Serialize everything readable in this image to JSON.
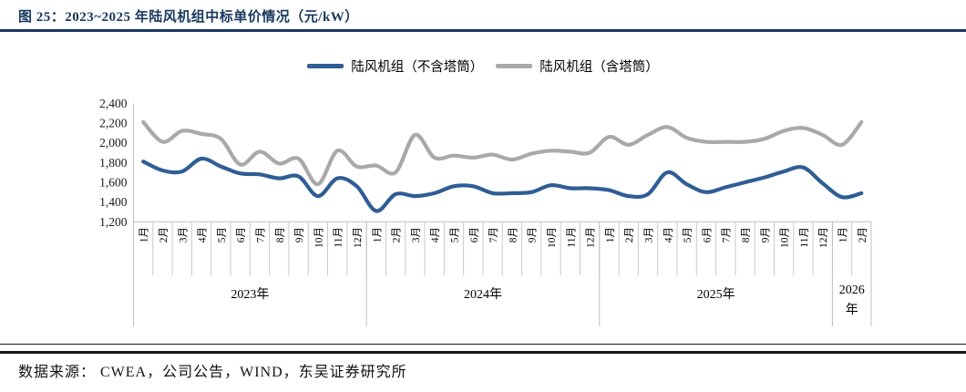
{
  "header": {
    "title": "图 25：2023~2025 年陆风机组中标单价情况（元/kW）"
  },
  "footer": {
    "source": "数据来源： CWEA，公司公告，WIND，东吴证券研究所"
  },
  "colors": {
    "accent_navy": "#17375E",
    "series_blue": "#2F5D95",
    "series_gray": "#A9A9A9",
    "axis_line": "#BFBFBF",
    "tick_text": "#1a1a1a"
  },
  "chart_data": {
    "type": "line",
    "title": "2023~2025 年陆风机组中标单价情况（元/kW）",
    "unit": "元/kW",
    "smooth": true,
    "grid": false,
    "legend_position": "top",
    "ylim": [
      1200,
      2400
    ],
    "ytick_labels": [
      "2,400",
      "2,200",
      "2,000",
      "1,800",
      "1,600",
      "1,400",
      "1,200"
    ],
    "ytick_values": [
      2400,
      2200,
      2000,
      1800,
      1600,
      1400,
      1200
    ],
    "categories": [
      "1月",
      "2月",
      "3月",
      "4月",
      "5月",
      "6月",
      "7月",
      "8月",
      "9月",
      "10月",
      "11月",
      "12月",
      "1月",
      "2月",
      "3月",
      "4月",
      "5月",
      "6月",
      "7月",
      "8月",
      "9月",
      "10月",
      "11月",
      "12月",
      "1月",
      "2月",
      "3月",
      "4月",
      "5月",
      "6月",
      "7月",
      "8月",
      "9月",
      "10月",
      "11月",
      "12月",
      "1月",
      "2月"
    ],
    "year_groups": [
      {
        "label": "2023年",
        "span": 12
      },
      {
        "label": "2024年",
        "span": 12
      },
      {
        "label": "2025年",
        "span": 12
      },
      {
        "label": "2026年",
        "span": 2
      }
    ],
    "series": [
      {
        "name": "陆风机组（不含塔筒）",
        "color": "#2F5D95",
        "values": [
          1810,
          1720,
          1710,
          1840,
          1760,
          1690,
          1680,
          1640,
          1660,
          1460,
          1640,
          1560,
          1310,
          1480,
          1460,
          1490,
          1560,
          1560,
          1490,
          1490,
          1500,
          1570,
          1540,
          1540,
          1520,
          1460,
          1480,
          1700,
          1580,
          1500,
          1550,
          1600,
          1650,
          1710,
          1750,
          1590,
          1450,
          1490
        ]
      },
      {
        "name": "陆风机组（含塔筒）",
        "color": "#A9A9A9",
        "values": [
          2210,
          2010,
          2120,
          2090,
          2040,
          1780,
          1910,
          1790,
          1840,
          1580,
          1920,
          1760,
          1770,
          1700,
          2080,
          1850,
          1870,
          1850,
          1880,
          1830,
          1890,
          1920,
          1910,
          1900,
          2060,
          1980,
          2080,
          2160,
          2050,
          2010,
          2010,
          2010,
          2040,
          2120,
          2150,
          2080,
          1980,
          2210
        ]
      }
    ]
  }
}
